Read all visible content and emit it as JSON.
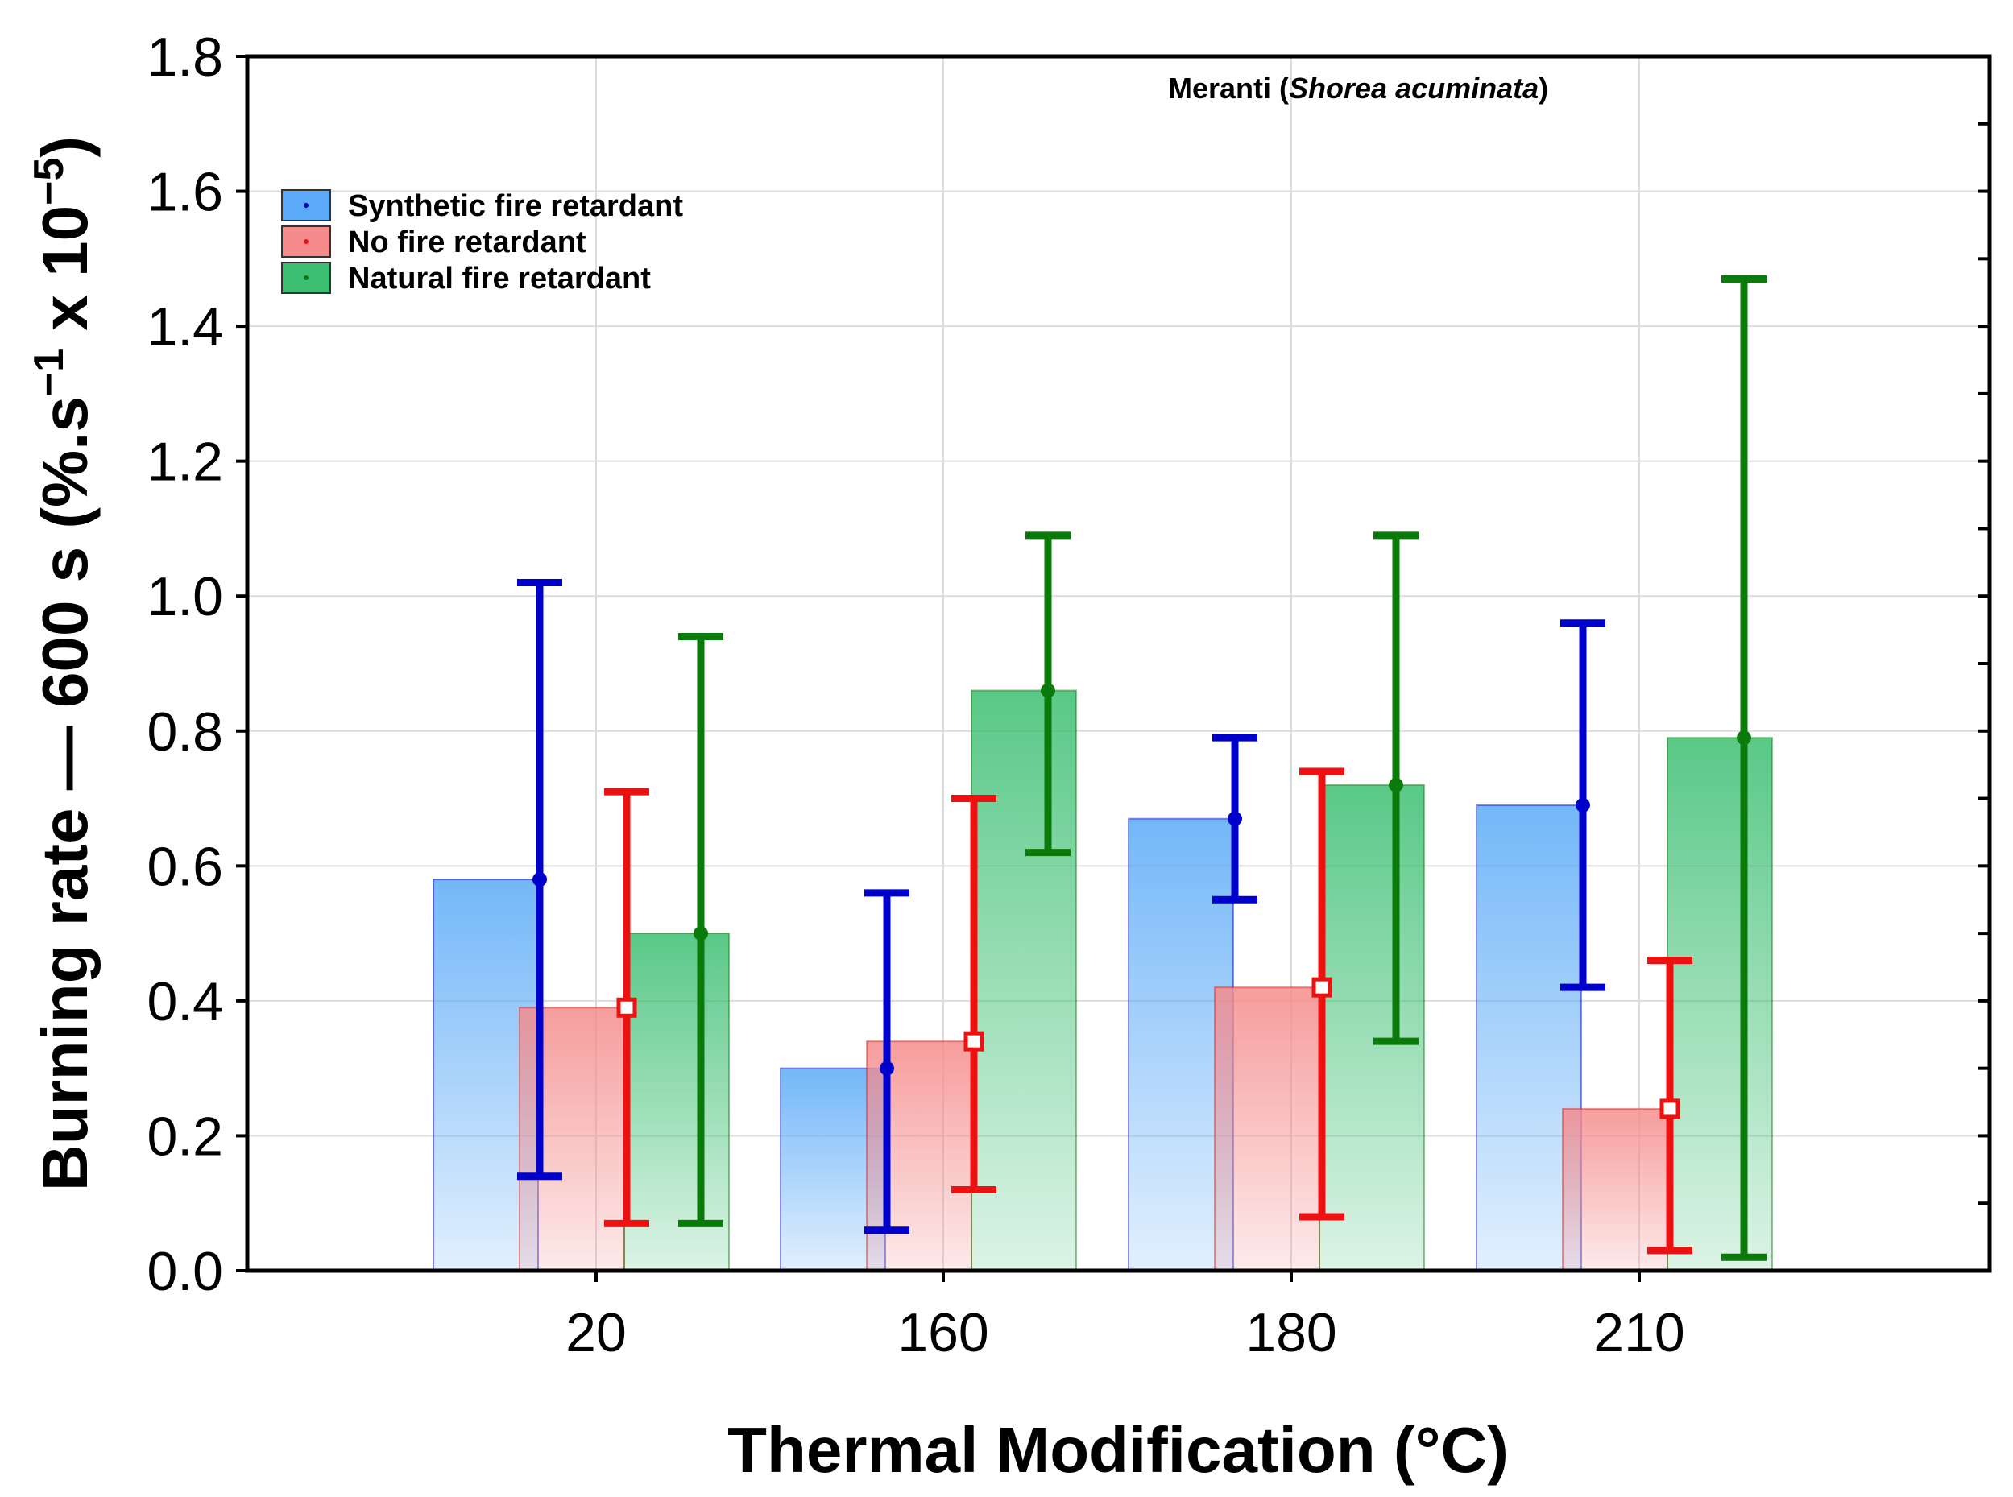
{
  "chart_data": {
    "type": "bar",
    "annotation": {
      "prefix": "Meranti (",
      "italic": "Shorea acuminata",
      "suffix": ")"
    },
    "xlabel": "Thermal Modification (°C)",
    "ylabel": {
      "main": "Burning rate —  600 s (%.s",
      "sup1": "−1",
      "mid": " x 10",
      "sup2": "−5",
      "end": ")"
    },
    "categories": [
      "20",
      "160",
      "180",
      "210"
    ],
    "ylim": [
      0,
      1.8
    ],
    "yticks": [
      "0.0",
      "0.2",
      "0.4",
      "0.6",
      "0.8",
      "1.0",
      "1.2",
      "1.4",
      "1.6",
      "1.8"
    ],
    "grid": true,
    "legend_position": "top-left",
    "error_bars": true,
    "series": [
      {
        "name": "Synthetic fire retardant",
        "color": "#0000cc",
        "fill": "#5aaaf7",
        "marker": "circle",
        "values": [
          0.58,
          0.3,
          0.67,
          0.69
        ],
        "err_low": [
          0.14,
          0.06,
          0.55,
          0.42
        ],
        "err_high": [
          1.02,
          0.56,
          0.79,
          0.96
        ]
      },
      {
        "name": "No fire retardant",
        "color": "#ee1111",
        "fill": "#f58b8b",
        "marker": "square",
        "values": [
          0.39,
          0.34,
          0.42,
          0.24
        ],
        "err_low": [
          0.07,
          0.12,
          0.08,
          0.03
        ],
        "err_high": [
          0.71,
          0.7,
          0.74,
          0.46
        ]
      },
      {
        "name": "Natural fire retardant",
        "color": "#0a7a0a",
        "fill": "#3cbf72",
        "marker": "circle",
        "values": [
          0.5,
          0.86,
          0.72,
          0.79
        ],
        "err_low": [
          0.07,
          0.62,
          0.34,
          0.02
        ],
        "err_high": [
          0.94,
          1.09,
          1.09,
          1.47
        ]
      }
    ]
  }
}
